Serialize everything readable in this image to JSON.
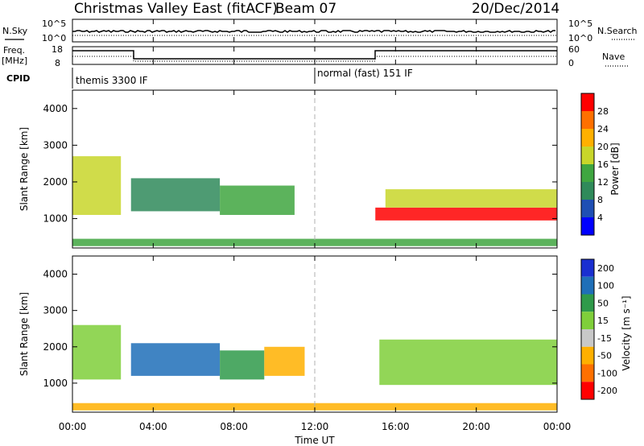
{
  "header": {
    "station": "Christmas Valley East (fitACF)",
    "beam": "Beam 07",
    "date": "20/Dec/2014"
  },
  "top_panels": {
    "nsky": {
      "label": "N.Sky",
      "ticks": [
        "10^5",
        "10^0"
      ]
    },
    "nsearch": {
      "label": "N.Search",
      "ticks": [
        "10^5",
        "10^0"
      ]
    },
    "freq": {
      "label_line1": "Freq.",
      "label_line2": "[MHz]",
      "ticks": [
        "18",
        "8"
      ]
    },
    "nave": {
      "label": "Nave",
      "ticks": [
        "60",
        "0"
      ]
    },
    "cpid": {
      "label": "CPID",
      "segments": [
        {
          "label": "themis 3300 IF",
          "start_hour": 0
        },
        {
          "label": "normal (fast) 151 IF",
          "start_hour": 12
        }
      ]
    }
  },
  "time_axis": {
    "label": "Time UT",
    "ticks": [
      "00:00",
      "04:00",
      "08:00",
      "12:00",
      "16:00",
      "20:00",
      "00:00"
    ],
    "range_hours": [
      0,
      24
    ]
  },
  "chart_data": [
    {
      "type": "heatmap",
      "name": "power",
      "xlabel": "Time UT",
      "ylabel": "Slant Range [km]",
      "xlim": [
        0,
        24
      ],
      "ylim": [
        200,
        4500
      ],
      "yticks": [
        "1000",
        "2000",
        "3000",
        "4000"
      ],
      "colorbar": {
        "label": "Power [dB]",
        "ticks": [
          "4",
          "8",
          "12",
          "16",
          "20",
          "24",
          "28"
        ],
        "colors": [
          "#0000ff",
          "#1f4fb4",
          "#2f8a5a",
          "#3fa640",
          "#c8d62a",
          "#ffb000",
          "#ff7000",
          "#ff0000"
        ]
      },
      "regions": [
        {
          "t0": 0.0,
          "t1": 2.4,
          "r0": 1100,
          "r1": 2700,
          "level": 16
        },
        {
          "t0": 2.9,
          "t1": 7.3,
          "r0": 1200,
          "r1": 2100,
          "level": 10
        },
        {
          "t0": 7.3,
          "t1": 11.0,
          "r0": 1100,
          "r1": 1900,
          "level": 12
        },
        {
          "t0": 15.0,
          "t1": 24.0,
          "r0": 950,
          "r1": 1300,
          "level": 28
        },
        {
          "t0": 15.5,
          "t1": 24.0,
          "r0": 1300,
          "r1": 1800,
          "level": 16
        },
        {
          "t0": 0.0,
          "t1": 24.0,
          "r0": 250,
          "r1": 450,
          "level": 12
        }
      ]
    },
    {
      "type": "heatmap",
      "name": "velocity",
      "xlabel": "Time UT",
      "ylabel": "Slant Range [km]",
      "xlim": [
        0,
        24
      ],
      "ylim": [
        200,
        4500
      ],
      "yticks": [
        "1000",
        "2000",
        "3000",
        "4000"
      ],
      "colorbar": {
        "label": "Velocity [m s⁻¹]",
        "ticks": [
          "200",
          "100",
          "50",
          "15",
          "-15",
          "-50",
          "-100",
          "-200"
        ],
        "colors": [
          "#1a2fd0",
          "#1f6fb8",
          "#2f9a4a",
          "#7fcf3a",
          "#c8c8c8",
          "#ffb000",
          "#ff7000",
          "#ff0000"
        ]
      },
      "regions": [
        {
          "t0": 0.0,
          "t1": 2.4,
          "r0": 1100,
          "r1": 2600,
          "level": 0
        },
        {
          "t0": 2.9,
          "t1": 7.3,
          "r0": 1200,
          "r1": 2100,
          "level": 120
        },
        {
          "t0": 7.3,
          "t1": 9.5,
          "r0": 1100,
          "r1": 1900,
          "level": 40
        },
        {
          "t0": 9.5,
          "t1": 11.5,
          "r0": 1200,
          "r1": 2000,
          "level": -40
        },
        {
          "t0": 15.2,
          "t1": 24.0,
          "r0": 950,
          "r1": 2200,
          "level": 0
        },
        {
          "t0": 0.0,
          "t1": 24.0,
          "r0": 250,
          "r1": 450,
          "level": -40
        }
      ]
    }
  ]
}
